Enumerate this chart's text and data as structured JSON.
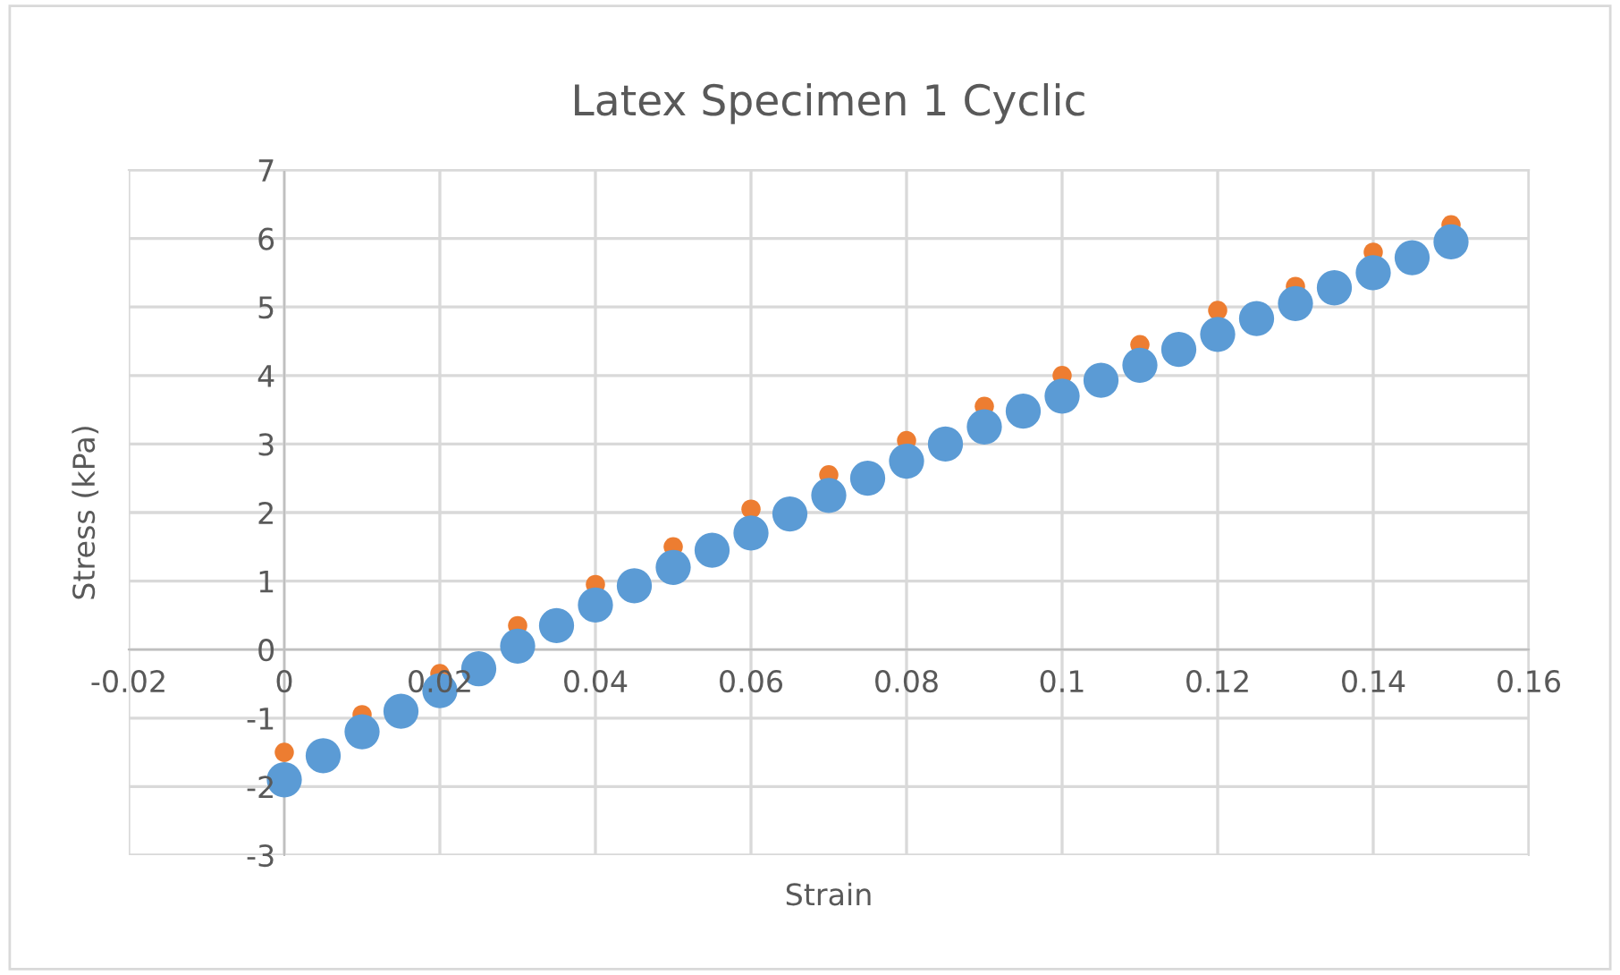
{
  "chart_data": {
    "type": "scatter",
    "title": "Latex Specimen 1 Cyclic",
    "xlabel": "Strain",
    "ylabel": "Stress (kPa)",
    "series": [
      {
        "color": "#ed7d31",
        "x": [
          0,
          0.01,
          0.02,
          0.03,
          0.04,
          0.05,
          0.06,
          0.07,
          0.08,
          0.09,
          0.1,
          0.11,
          0.12,
          0.13,
          0.14,
          0.15
        ],
        "values": [
          -1.5,
          -0.95,
          -0.35,
          0.35,
          0.95,
          1.5,
          2.05,
          2.55,
          3.05,
          3.55,
          4.0,
          4.45,
          4.95,
          5.3,
          5.8,
          6.2
        ]
      },
      {
        "color": "#5b9bd5",
        "x": [
          0,
          0.005,
          0.01,
          0.015,
          0.02,
          0.025,
          0.03,
          0.035,
          0.04,
          0.045,
          0.05,
          0.055,
          0.06,
          0.065,
          0.07,
          0.075,
          0.08,
          0.085,
          0.09,
          0.095,
          0.1,
          0.105,
          0.11,
          0.115,
          0.12,
          0.125,
          0.13,
          0.135,
          0.14,
          0.145,
          0.15
        ],
        "values": [
          -1.9,
          -1.55,
          -1.2,
          -0.9,
          -0.6,
          -0.28,
          0.05,
          0.35,
          0.65,
          0.93,
          1.2,
          1.45,
          1.7,
          1.98,
          2.25,
          2.5,
          2.75,
          3.0,
          3.25,
          3.48,
          3.7,
          3.93,
          4.15,
          4.38,
          4.6,
          4.83,
          5.05,
          5.28,
          5.5,
          5.72,
          5.95
        ]
      }
    ],
    "xlim": [
      -0.02,
      0.16
    ],
    "xticks": [
      -0.02,
      0,
      0.02,
      0.04,
      0.06,
      0.08,
      0.1,
      0.12,
      0.14,
      0.16
    ],
    "ylim": [
      -3,
      7
    ],
    "yticks": [
      -3,
      -2,
      -1,
      0,
      1,
      2,
      3,
      4,
      5,
      6,
      7
    ],
    "grid": true,
    "marker": "circle",
    "legend": false
  }
}
